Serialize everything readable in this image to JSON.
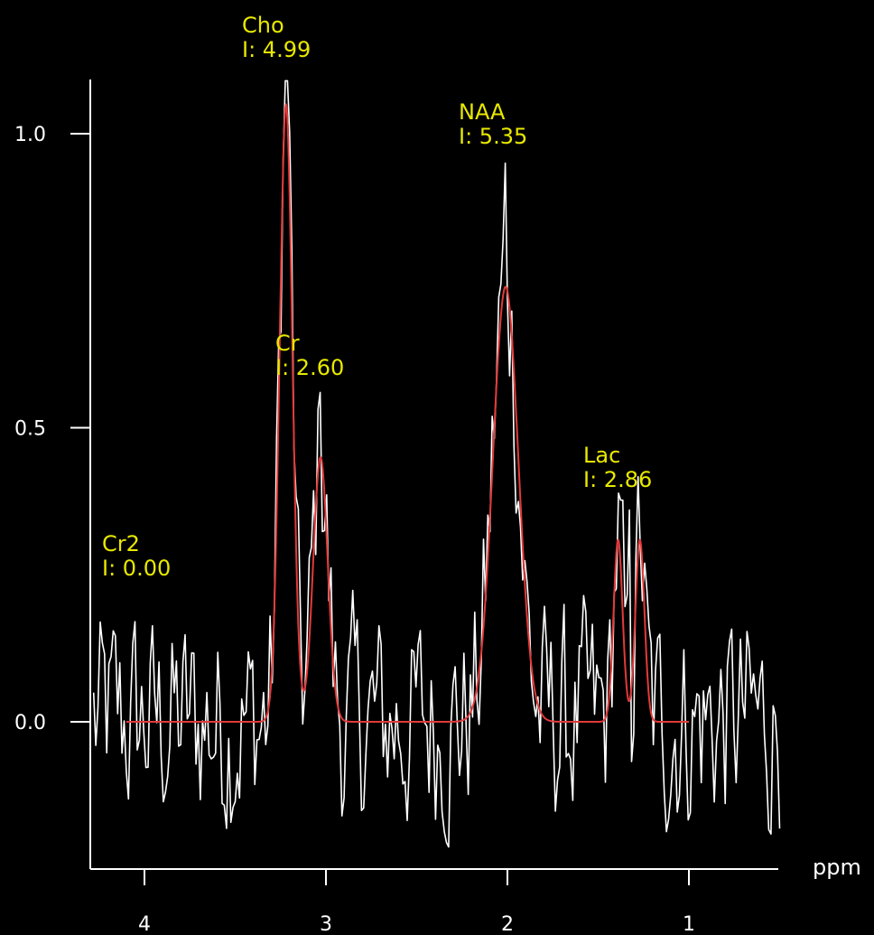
{
  "chart_data": {
    "type": "line",
    "x_axis": {
      "unit_label": "ppm",
      "reversed": true,
      "range": [
        4.3,
        0.5
      ],
      "ticks": [
        4,
        3,
        2,
        1
      ]
    },
    "y_axis": {
      "range": [
        -0.25,
        1.1
      ],
      "ticks": [
        1.0,
        0.5,
        0.0
      ]
    },
    "y_tick_labels": [
      "1.0",
      "0.5",
      "0.0"
    ],
    "x_tick_labels": [
      "4",
      "3",
      "2",
      "1"
    ],
    "grid": false,
    "series": [
      {
        "role": "spectrum",
        "color": "#ffffff"
      },
      {
        "role": "fit",
        "color": "#e23a3a"
      }
    ],
    "peaks": [
      {
        "name": "Cho",
        "integral": "I: 4.99",
        "ppm": 3.22,
        "height": 1.09
      },
      {
        "name": "Cr",
        "integral": "I: 2.60",
        "ppm": 3.03,
        "height": 0.56
      },
      {
        "name": "NAA",
        "integral": "I: 5.35",
        "ppm": 2.01,
        "height": 0.95
      },
      {
        "name": "Lac",
        "integral": "I: 2.86",
        "ppm": 1.33,
        "height": 0.36
      },
      {
        "name": "Cr2",
        "integral": "I: 0.00",
        "ppm": 3.94,
        "height": 0.0
      }
    ],
    "fit_peaks": [
      {
        "ppm": 3.22,
        "height": 1.05,
        "width": 0.035
      },
      {
        "ppm": 3.03,
        "height": 0.45,
        "width": 0.04
      },
      {
        "ppm": 2.01,
        "height": 0.74,
        "width": 0.07
      },
      {
        "ppm": 1.39,
        "height": 0.31,
        "width": 0.025
      },
      {
        "ppm": 1.27,
        "height": 0.31,
        "width": 0.025
      }
    ]
  }
}
